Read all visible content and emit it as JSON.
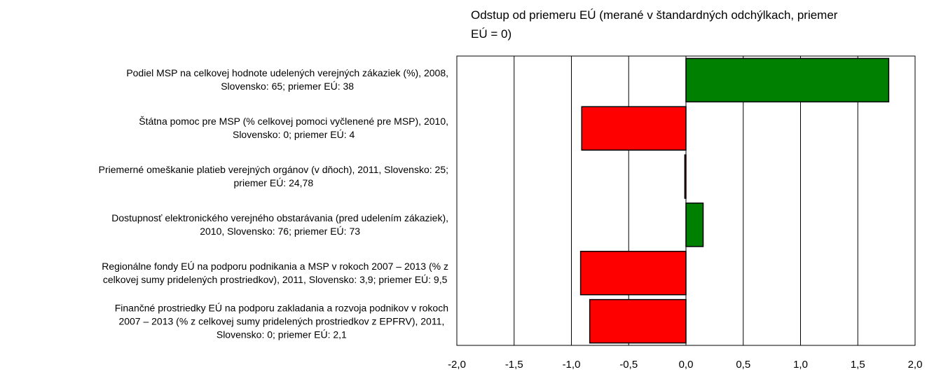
{
  "chart_data": {
    "type": "hbar",
    "title": "Odstup od priemeru EÚ (merané v štandardných odchýlkach, priemer EÚ = 0)",
    "categories": [
      "Podiel MSP na celkovej hodnote udelených verejných zákaziek (%), 2008,\nSlovensko: 65; priemer EÚ: 38",
      "Štátna pomoc pre MSP (% celkovej pomoci vyčlenené pre MSP), 2010,\nSlovensko: 0; priemer EÚ: 4",
      "Priemerné omeškanie platieb verejných orgánov (v dňoch), 2011, Slovensko: 25;\npriemer EÚ: 24,78",
      "Dostupnosť elektronického verejného obstarávania (pred udelením zákaziek),\n2010, Slovensko: 76; priemer EÚ: 73",
      "Regionálne fondy EÚ na podporu podnikania a MSP v rokoch 2007 – 2013 (% z\ncelkovej sumy pridelených prostriedkov), 2011, Slovensko: 3,9; priemer EÚ: 9,5",
      "Finančné prostriedky EÚ na podporu zakladania a rozvoja podnikov v rokoch\n2007 – 2013 (% z celkovej sumy pridelených prostriedkov z EPFRV), 2011,\nSlovensko: 0; priemer EÚ: 2,1"
    ],
    "values": [
      1.77,
      -0.91,
      -0.01,
      0.15,
      -0.92,
      -0.84
    ],
    "positive_color": "#008000",
    "negative_color": "#ff0000",
    "xlim": [
      -2,
      2
    ],
    "xticks": [
      {
        "value": -2,
        "label": "-2,0"
      },
      {
        "value": -1.5,
        "label": "-1,5"
      },
      {
        "value": -1,
        "label": "-1,0"
      },
      {
        "value": -0.5,
        "label": "-0,5"
      },
      {
        "value": 0,
        "label": "0,0"
      },
      {
        "value": 0.5,
        "label": "0,5"
      },
      {
        "value": 1,
        "label": "1,0"
      },
      {
        "value": 1.5,
        "label": "1,5"
      },
      {
        "value": 2,
        "label": "2,0"
      }
    ],
    "grid": true
  }
}
